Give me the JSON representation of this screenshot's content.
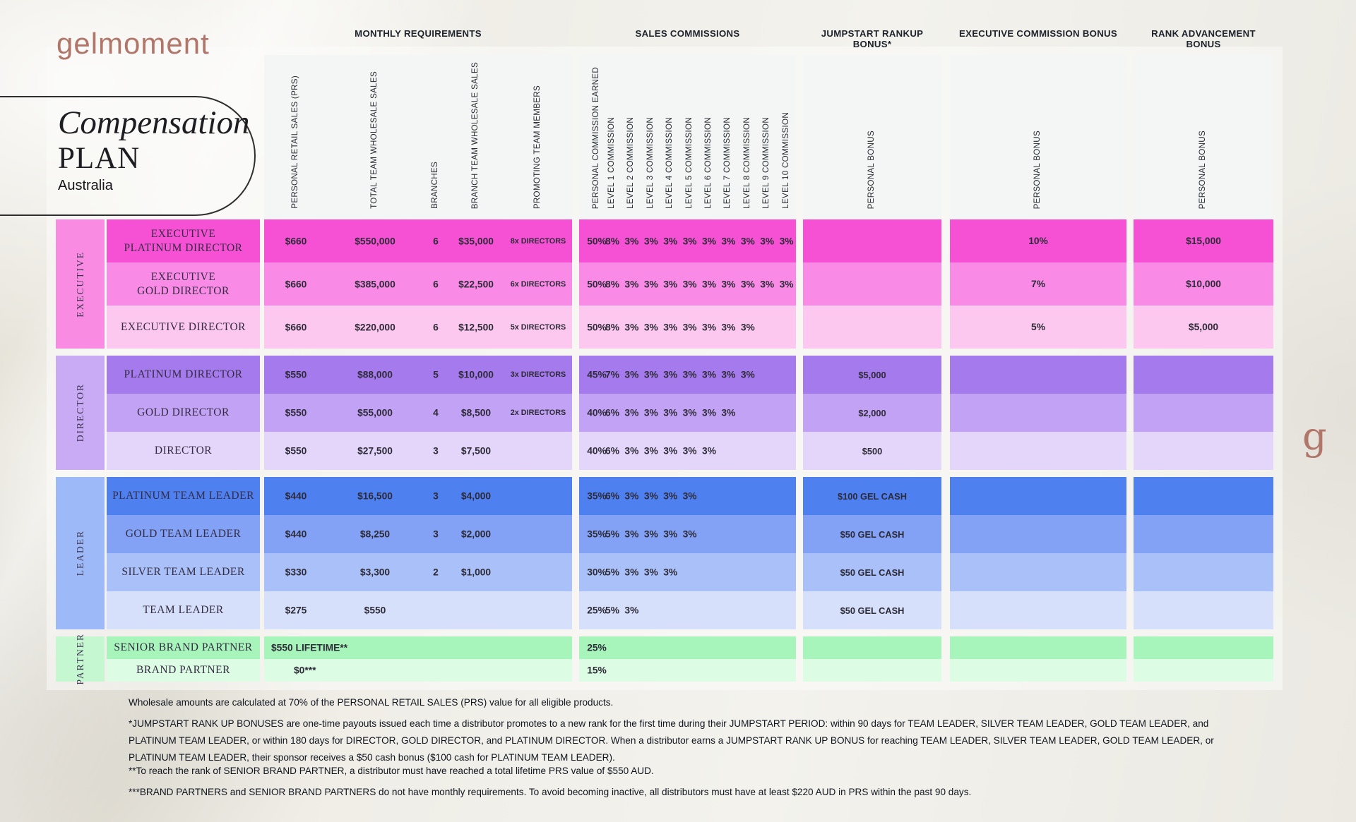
{
  "brand": {
    "logo_text": "gelmoment",
    "monogram": "g",
    "accent": "#b1766a"
  },
  "title_card": {
    "title_italic": "Compensation",
    "title_caps": "PLAN",
    "region": "Australia"
  },
  "section_headers": [
    "MONTHLY REQUIREMENTS",
    "SALES COMMISSIONS",
    "JUMPSTART RANKUP BONUS*",
    "EXECUTIVE COMMISSION BONUS",
    "RANK ADVANCEMENT BONUS"
  ],
  "req_column_labels": [
    "PERSONAL RETAIL SALES (PRS)",
    "TOTAL TEAM WHOLESALE SALES",
    "BRANCHES",
    "BRANCH TEAM WHOLESALE SALES",
    "PROMOTING TEAM MEMBERS"
  ],
  "commission_column_labels": [
    "PERSONAL COMMISSION EARNED",
    "LEVEL 1 COMMISSION",
    "LEVEL 2 COMMISSION",
    "LEVEL 3 COMMISSION",
    "LEVEL 4 COMMISSION",
    "LEVEL 5 COMMISSION",
    "LEVEL 6 COMMISSION",
    "LEVEL 7 COMMISSION",
    "LEVEL 8 COMMISSION",
    "LEVEL 9 COMMISSION",
    "LEVEL 10 COMMISSION"
  ],
  "bonus_column_labels": [
    "PERSONAL BONUS",
    "PERSONAL BONUS",
    "PERSONAL BONUS"
  ],
  "colors": {
    "header_bg": "#f3f6f4"
  },
  "groups": [
    {
      "label": "EXECUTIVE",
      "label_bg": "#f98ce2"
    },
    {
      "label": "DIRECTOR",
      "label_bg": "#c9aaf5"
    },
    {
      "label": "LEADER",
      "label_bg": "#9db9f8"
    },
    {
      "label": "PARTNER",
      "label_bg": "#c5f8d1"
    }
  ],
  "rows": [
    {
      "rank": "EXECUTIVE\nPLATINUM DIRECTOR",
      "color": "#f650d4",
      "req": [
        "$660",
        "$550,000",
        "6",
        "$35,000",
        "8x DIRECTORS"
      ],
      "commissions": [
        "50%",
        "8%",
        "3%",
        "3%",
        "3%",
        "3%",
        "3%",
        "3%",
        "3%",
        "3%",
        "3%"
      ],
      "jumpstart": "",
      "exec_bonus": "10%",
      "rank_bonus": "$15,000"
    },
    {
      "rank": "EXECUTIVE\nGOLD DIRECTOR",
      "color": "#f98ae6",
      "req": [
        "$660",
        "$385,000",
        "6",
        "$22,500",
        "6x DIRECTORS"
      ],
      "commissions": [
        "50%",
        "8%",
        "3%",
        "3%",
        "3%",
        "3%",
        "3%",
        "3%",
        "3%",
        "3%",
        "3%"
      ],
      "jumpstart": "",
      "exec_bonus": "7%",
      "rank_bonus": "$10,000"
    },
    {
      "rank": "EXECUTIVE DIRECTOR",
      "color": "#fcc8ef",
      "req": [
        "$660",
        "$220,000",
        "6",
        "$12,500",
        "5x DIRECTORS"
      ],
      "commissions": [
        "50%",
        "8%",
        "3%",
        "3%",
        "3%",
        "3%",
        "3%",
        "3%",
        "3%"
      ],
      "jumpstart": "",
      "exec_bonus": "5%",
      "rank_bonus": "$5,000"
    },
    {
      "rank": "PLATINUM DIRECTOR",
      "color": "#a47aec",
      "req": [
        "$550",
        "$88,000",
        "5",
        "$10,000",
        "3x DIRECTORS"
      ],
      "commissions": [
        "45%",
        "7%",
        "3%",
        "3%",
        "3%",
        "3%",
        "3%",
        "3%",
        "3%"
      ],
      "jumpstart": "$5,000",
      "exec_bonus": "",
      "rank_bonus": ""
    },
    {
      "rank": "GOLD DIRECTOR",
      "color": "#c2a2f4",
      "req": [
        "$550",
        "$55,000",
        "4",
        "$8,500",
        "2x DIRECTORS"
      ],
      "commissions": [
        "40%",
        "6%",
        "3%",
        "3%",
        "3%",
        "3%",
        "3%",
        "3%"
      ],
      "jumpstart": "$2,000",
      "exec_bonus": "",
      "rank_bonus": ""
    },
    {
      "rank": "DIRECTOR",
      "color": "#e4d6fa",
      "req": [
        "$550",
        "$27,500",
        "3",
        "$7,500",
        ""
      ],
      "commissions": [
        "40%",
        "6%",
        "3%",
        "3%",
        "3%",
        "3%",
        "3%"
      ],
      "jumpstart": "$500",
      "exec_bonus": "",
      "rank_bonus": ""
    },
    {
      "rank": "PLATINUM TEAM LEADER",
      "color": "#4f80f0",
      "req": [
        "$440",
        "$16,500",
        "3",
        "$4,000",
        ""
      ],
      "commissions": [
        "35%",
        "6%",
        "3%",
        "3%",
        "3%",
        "3%"
      ],
      "jumpstart": "$100 GEL CASH",
      "exec_bonus": "",
      "rank_bonus": ""
    },
    {
      "rank": "GOLD TEAM LEADER",
      "color": "#83a2f5",
      "req": [
        "$440",
        "$8,250",
        "3",
        "$2,000",
        ""
      ],
      "commissions": [
        "35%",
        "5%",
        "3%",
        "3%",
        "3%",
        "3%"
      ],
      "jumpstart": "$50 GEL CASH",
      "exec_bonus": "",
      "rank_bonus": ""
    },
    {
      "rank": "SILVER TEAM LEADER",
      "color": "#a9c0f8",
      "req": [
        "$330",
        "$3,300",
        "2",
        "$1,000",
        ""
      ],
      "commissions": [
        "30%",
        "5%",
        "3%",
        "3%",
        "3%"
      ],
      "jumpstart": "$50 GEL CASH",
      "exec_bonus": "",
      "rank_bonus": ""
    },
    {
      "rank": "TEAM LEADER",
      "color": "#d6e0fb",
      "req": [
        "$275",
        "$550",
        "",
        "",
        ""
      ],
      "commissions": [
        "25%",
        "5%",
        "3%"
      ],
      "jumpstart": "$50 GEL CASH",
      "exec_bonus": "",
      "rank_bonus": ""
    },
    {
      "rank": "SENIOR BRAND PARTNER",
      "color": "#a8f5bc",
      "req_single": {
        "text": "$550 LIFETIME**",
        "offset": 10
      },
      "commissions": [
        "25%"
      ],
      "jumpstart": "",
      "exec_bonus": "",
      "rank_bonus": ""
    },
    {
      "rank": "BRAND PARTNER",
      "color": "#dcfce4",
      "req_single": {
        "text": "$0***",
        "offset": 42
      },
      "commissions": [
        "15%"
      ],
      "jumpstart": "",
      "exec_bonus": "",
      "rank_bonus": ""
    }
  ],
  "footnotes": [
    "Wholesale amounts are calculated at 70% of the PERSONAL RETAIL SALES (PRS) value for all eligible products.",
    "*JUMPSTART RANK UP BONUSES are one-time payouts issued each time a distributor promotes to a new rank for the first time during their JUMPSTART PERIOD: within 90 days for TEAM LEADER, SILVER TEAM LEADER, GOLD TEAM LEADER, and PLATINUM TEAM LEADER, or within 180 days for DIRECTOR, GOLD DIRECTOR, and PLATINUM DIRECTOR. When a distributor earns a JUMPSTART RANK UP BONUS for reaching TEAM LEADER, SILVER TEAM LEADER, GOLD TEAM LEADER, or PLATINUM TEAM LEADER, their sponsor receives a $50 cash bonus ($100 cash for PLATINUM TEAM LEADER).",
    "**To reach the rank of SENIOR BRAND PARTNER, a distributor must have reached a total lifetime PRS value of $550 AUD.",
    "***BRAND PARTNERS and SENIOR BRAND PARTNERS do not have monthly requirements. To avoid becoming inactive, all distributors must have at least $220 AUD in PRS within the past 90 days."
  ]
}
